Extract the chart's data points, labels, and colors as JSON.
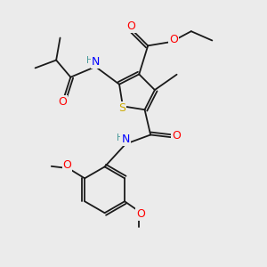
{
  "bg_color": "#ebebeb",
  "atom_colors": {
    "H": "#4a9a9a",
    "N": "#0000ff",
    "O": "#ff0000",
    "S": "#ccaa00"
  },
  "bond_color": "#1a1a1a",
  "figsize": [
    3.0,
    3.0
  ],
  "dpi": 100,
  "bond_lw": 1.3,
  "font_size_atom": 8.5,
  "font_size_small": 7.0
}
